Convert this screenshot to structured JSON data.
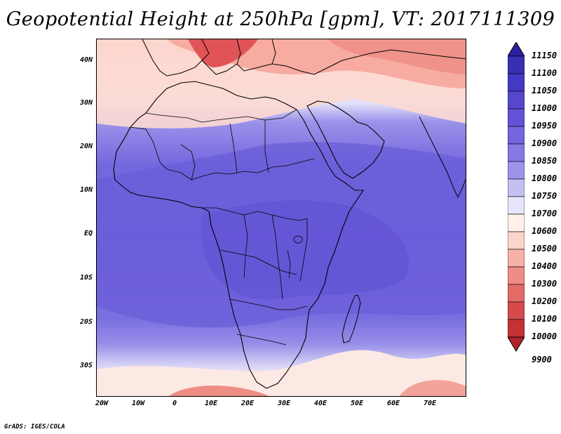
{
  "title": "Geopotential Height at 250hPa [gpm], VT: 2017111309",
  "credit": "GrADS: IGES/COLA",
  "map": {
    "lat_labels": [
      "40N",
      "30N",
      "20N",
      "10N",
      "EQ",
      "10S",
      "20S",
      "30S"
    ],
    "lon_labels": [
      "20W",
      "10W",
      "0",
      "10E",
      "20E",
      "30E",
      "40E",
      "50E",
      "60E",
      "70E"
    ]
  },
  "colorbar": {
    "levels": [
      "11150",
      "11100",
      "11050",
      "11000",
      "10950",
      "10900",
      "10850",
      "10800",
      "10750",
      "10700",
      "10600",
      "10500",
      "10400",
      "10300",
      "10200",
      "10100",
      "10000",
      "9900"
    ],
    "colors": [
      "#2d1f9e",
      "#3a2fb4",
      "#4538c4",
      "#5548cf",
      "#6352d6",
      "#7366dd",
      "#8679e4",
      "#9d93ea",
      "#c4c0f2",
      "#e6e5fb",
      "#fff0ec",
      "#fbd4cc",
      "#f6b1a8",
      "#ee8d85",
      "#e36a67",
      "#d54a4c",
      "#c53236",
      "#b22229"
    ]
  }
}
